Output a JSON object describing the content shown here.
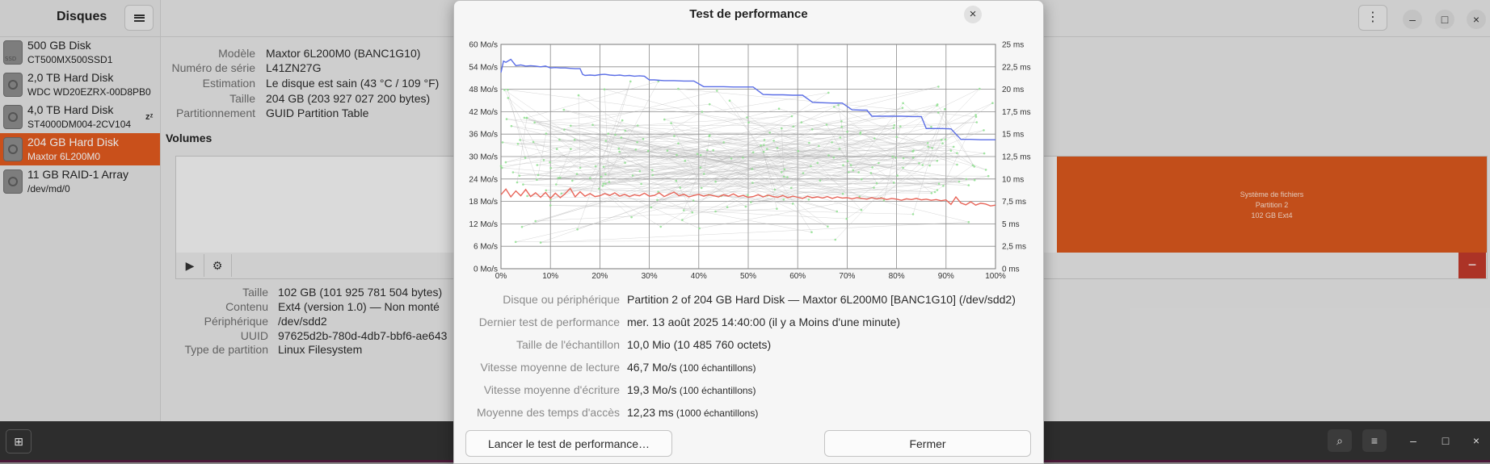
{
  "sidebar": {
    "title": "Disques",
    "disks": [
      {
        "name": "500 GB Disk",
        "model": "CT500MX500SSD1",
        "icon": "ssd-icon",
        "ssd_text": "SSD"
      },
      {
        "name": "2,0 TB Hard Disk",
        "model": "WDC WD20EZRX-00D8PB0",
        "icon": "hard-disk-icon"
      },
      {
        "name": "4,0 TB Hard Disk",
        "model": "ST4000DM004-2CV104",
        "icon": "hard-disk-icon",
        "badge": "zᶻ"
      },
      {
        "name": "204 GB Hard Disk",
        "model": "Maxtor 6L200M0",
        "icon": "hard-disk-icon",
        "selected": true
      },
      {
        "name": "11 GB RAID-1 Array",
        "model": "/dev/md/0",
        "icon": "raid-icon"
      }
    ]
  },
  "disk_info": [
    {
      "label": "Modèle",
      "value": "Maxtor 6L200M0 (BANC1G10)"
    },
    {
      "label": "Numéro de série",
      "value": "L41ZN27G"
    },
    {
      "label": "Estimation",
      "value": "Le disque est sain (43 °C / 109 °F)"
    },
    {
      "label": "Taille",
      "value": "204 GB (203 927 027 200 bytes)"
    },
    {
      "label": "Partitionnement",
      "value": "GUID Partition Table"
    }
  ],
  "volumes": {
    "title": "Volumes",
    "partition2": {
      "line1": "Système de fichiers",
      "line2": "Partition 2",
      "line3": "102 GB Ext4"
    },
    "minus_label": "−"
  },
  "volume_info": [
    {
      "label": "Taille",
      "value": "102 GB (101 925 781 504 bytes)"
    },
    {
      "label": "Contenu",
      "value": "Ext4 (version 1.0) — Non monté"
    },
    {
      "label": "Périphérique",
      "value": "/dev/sdd2"
    },
    {
      "label": "UUID",
      "value": "97625d2b-780d-4db7-bbf6-ae643"
    },
    {
      "label": "Type de partition",
      "value": "Linux Filesystem"
    }
  ],
  "dialog": {
    "title": "Test de performance",
    "close": "×",
    "info": [
      {
        "label": "Disque ou périphérique",
        "value": "Partition 2 of 204 GB Hard Disk — Maxtor 6L200M0 [BANC1G10] (/dev/sdd2)",
        "suffix": ""
      },
      {
        "label": "Dernier test de performance",
        "value": "mer. 13 août 2025 14:40:00 (il y a Moins d'une minute)",
        "suffix": ""
      },
      {
        "label": "Taille de l'échantillon",
        "value": "10,0 Mio (10 485 760 octets)",
        "suffix": ""
      },
      {
        "label": "Vitesse moyenne de lecture",
        "value": "46,7 Mo/s",
        "suffix": " (100 échantillons)"
      },
      {
        "label": "Vitesse moyenne d'écriture",
        "value": "19,3 Mo/s",
        "suffix": " (100 échantillons)"
      },
      {
        "label": "Moyenne des temps d'accès",
        "value": "12,23 ms",
        "suffix": " (1000 échantillons)"
      }
    ],
    "start_button": "Lancer le test de performance…",
    "close_button": "Fermer"
  },
  "chart_data": {
    "type": "line",
    "x_ticks": [
      "0%",
      "10%",
      "20%",
      "30%",
      "40%",
      "50%",
      "60%",
      "70%",
      "80%",
      "90%",
      "100%"
    ],
    "y_left_ticks": [
      "60 Mo/s",
      "54 Mo/s",
      "48 Mo/s",
      "42 Mo/s",
      "36 Mo/s",
      "30 Mo/s",
      "24 Mo/s",
      "18 Mo/s",
      "12 Mo/s",
      "6 Mo/s",
      "0 Mo/s"
    ],
    "y_right_ticks": [
      "25 ms",
      "22,5 ms",
      "20 ms",
      "17,5 ms",
      "15 ms",
      "12,5 ms",
      "10 ms",
      "7,5 ms",
      "5 ms",
      "2,5 ms",
      "0 ms"
    ],
    "xlim": [
      0,
      100
    ],
    "ylim_left": [
      0,
      60
    ],
    "ylim_right": [
      0,
      25
    ],
    "grid": true,
    "read_color": "#5b6ee6",
    "write_color": "#e8665a",
    "access_color": "#8fe08f",
    "series": [
      {
        "role": "read",
        "x": [
          0,
          0.5,
          1,
          2,
          3,
          4,
          5,
          6,
          7,
          8,
          9,
          10,
          11,
          12,
          13,
          14,
          15,
          16,
          16.5,
          17,
          18,
          19,
          20,
          21,
          22,
          23,
          24,
          25,
          26,
          27,
          28,
          29,
          30,
          31,
          33,
          35,
          37,
          39,
          41,
          43,
          45,
          47,
          49,
          51,
          53,
          55,
          57,
          59,
          61,
          63,
          65,
          67,
          69,
          71,
          73,
          74,
          75,
          77,
          79,
          81,
          83,
          85,
          86,
          87,
          89,
          91,
          93,
          95,
          97,
          99,
          100
        ],
        "values": [
          52.5,
          55.5,
          55.2,
          56,
          54.3,
          54.5,
          54.2,
          54.3,
          54.2,
          54,
          54.2,
          53.7,
          53.8,
          53.7,
          53.7,
          53.6,
          53.5,
          53.5,
          52,
          51.7,
          51.8,
          51.7,
          51.9,
          52,
          51.8,
          51.7,
          51.8,
          51.6,
          51.7,
          51.5,
          51.6,
          51.5,
          50.5,
          50.5,
          50.3,
          50.3,
          50.2,
          50.2,
          48.7,
          48.7,
          48.7,
          48.6,
          48.6,
          48.6,
          46.6,
          46.5,
          46.5,
          46.4,
          46.4,
          44.5,
          44.4,
          44.3,
          44.3,
          42.5,
          42.4,
          42.4,
          40.8,
          40.8,
          40.8,
          40.8,
          40.7,
          40.7,
          37.5,
          37.5,
          37.5,
          37.4,
          34.6,
          34.6,
          34.5,
          34.5,
          34.5
        ]
      },
      {
        "role": "write",
        "x": [
          0,
          1,
          2,
          3,
          4,
          5,
          6,
          7,
          8,
          9,
          10,
          11,
          12,
          13,
          14,
          15,
          16,
          17,
          18,
          19,
          20,
          21,
          22,
          23,
          24,
          25,
          26,
          27,
          28,
          29,
          30,
          31,
          32,
          33,
          34,
          35,
          36,
          37,
          38,
          39,
          40,
          41,
          42,
          43,
          44,
          45,
          46,
          47,
          48,
          49,
          50,
          51,
          52,
          53,
          54,
          55,
          56,
          57,
          58,
          59,
          60,
          61,
          62,
          63,
          64,
          65,
          66,
          67,
          68,
          69,
          70,
          71,
          72,
          73,
          74,
          75,
          76,
          77,
          78,
          79,
          80,
          81,
          82,
          83,
          84,
          85,
          86,
          87,
          88,
          89,
          90,
          91,
          92,
          93,
          94,
          95,
          96,
          97,
          98,
          99,
          100
        ],
        "values": [
          19.8,
          21.3,
          19.2,
          20.8,
          19.5,
          21.2,
          19.3,
          20.3,
          19.1,
          20.4,
          18.8,
          20.2,
          19,
          20.1,
          21.5,
          19.2,
          20.6,
          19.4,
          20.1,
          19.3,
          19.5,
          20.1,
          19.6,
          20.3,
          19.4,
          19.9,
          19.3,
          19.8,
          19.5,
          20.2,
          19.4,
          19.6,
          20.3,
          19.3,
          19.9,
          20.5,
          19.5,
          19.9,
          19.2,
          19.6,
          19.9,
          19.4,
          19.8,
          19.5,
          19.2,
          19.8,
          19.4,
          20,
          19.3,
          19.6,
          19.1,
          19.3,
          19.8,
          19.2,
          19.7,
          19.3,
          19.1,
          19.6,
          19,
          19.4,
          19.1,
          18.8,
          19.4,
          19,
          19.2,
          18.9,
          19.3,
          18.8,
          19.2,
          18.9,
          19,
          18.7,
          19,
          18.8,
          18.6,
          19,
          18.7,
          18.9,
          18.5,
          18.8,
          18.6,
          18.3,
          18.7,
          18.5,
          18.8,
          18.4,
          18.6,
          18.3,
          18.5,
          18.2,
          18.4,
          17.2,
          19.2,
          17.6,
          17.1,
          17.9,
          17,
          17.5,
          17.3,
          16.8,
          17
        ]
      }
    ]
  }
}
